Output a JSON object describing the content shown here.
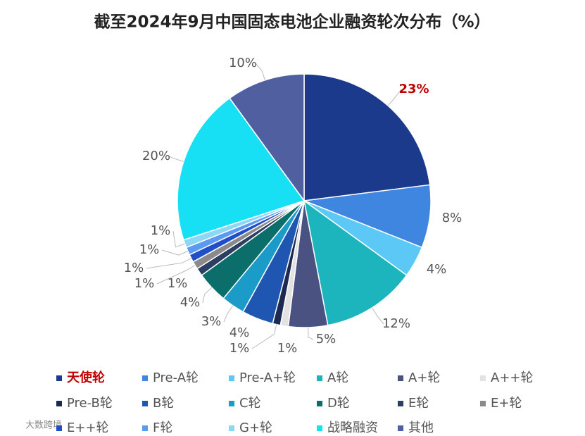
{
  "chart_data": {
    "type": "pie",
    "title": "截至2024年9月中国固态电池企业融资轮次分布（%）",
    "categories": [
      "天使轮",
      "Pre-A轮",
      "Pre-A+轮",
      "A轮",
      "A+轮",
      "A++轮",
      "Pre-B轮",
      "B轮",
      "C轮",
      "D轮",
      "E轮",
      "E+轮",
      "E++轮",
      "F轮",
      "G+轮",
      "战略融资",
      "其他"
    ],
    "values": [
      23,
      8,
      4,
      12,
      5,
      1,
      1,
      4,
      3,
      4,
      1,
      1,
      1,
      1,
      1,
      20,
      10
    ],
    "value_labels": [
      "23%",
      "8%",
      "4%",
      "12%",
      "5%",
      "1%",
      "1%",
      "4%",
      "3%",
      "4%",
      "1%",
      "1%",
      "1%",
      "1%",
      "1%",
      "20%",
      "10%"
    ],
    "colors": [
      "#1b3a8c",
      "#3f86e0",
      "#5cc8f5",
      "#1db5bd",
      "#4a5282",
      "#e2e2e2",
      "#1c2a52",
      "#1f56b2",
      "#1a9bc8",
      "#0b6e6b",
      "#2c3e62",
      "#8a8a8a",
      "#1f4ec8",
      "#5a9af0",
      "#8ad8f5",
      "#17e0f4",
      "#4f5fa0"
    ],
    "highlight": 0,
    "watermark": "大数跨境"
  }
}
